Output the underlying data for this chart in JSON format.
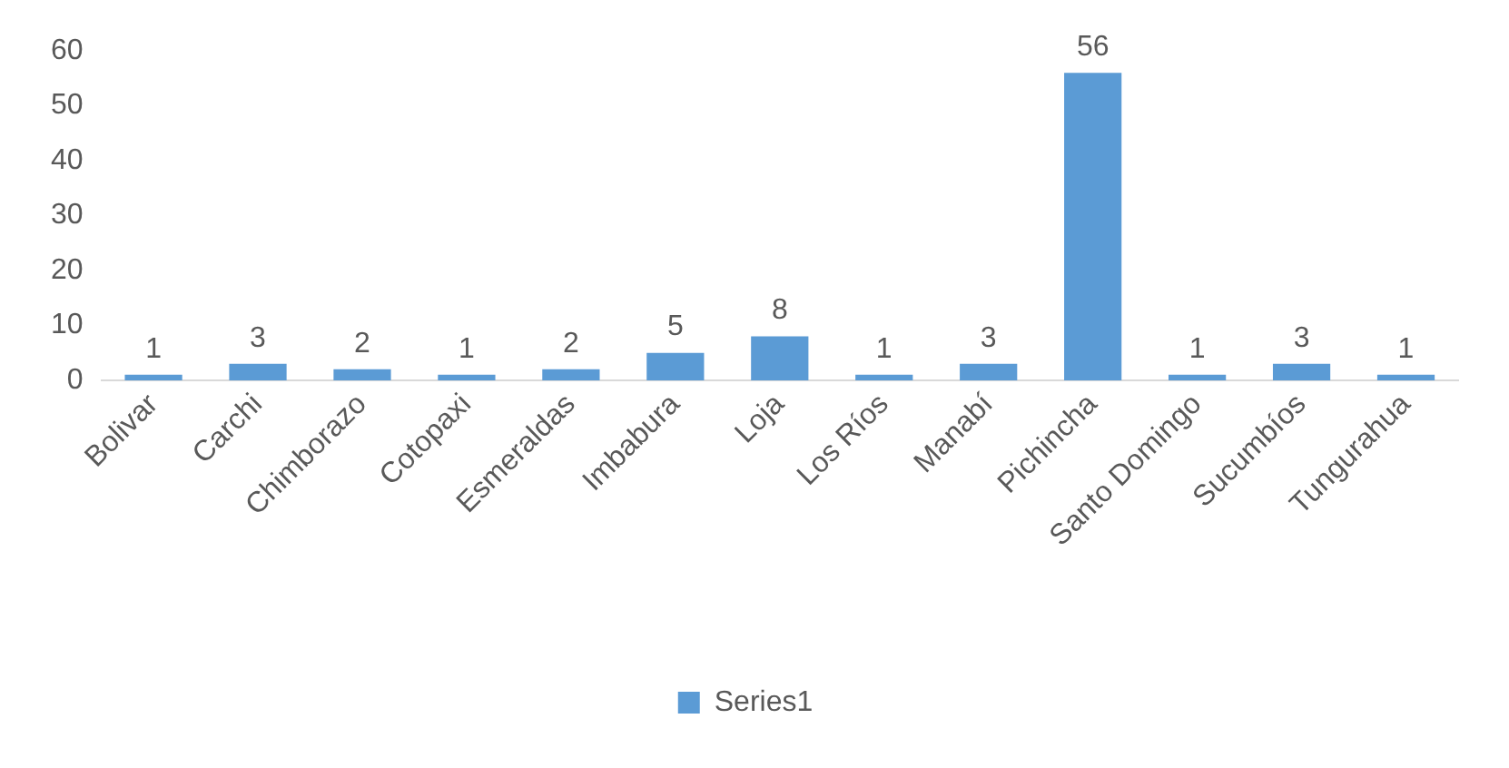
{
  "chart_data": {
    "type": "bar",
    "categories": [
      "Bolivar",
      "Carchi",
      "Chimborazo",
      "Cotopaxi",
      "Esmeraldas",
      "Imbabura",
      "Loja",
      "Los Ríos",
      "Manabí",
      "Pichincha",
      "Santo Domingo",
      "Sucumbíos",
      "Tungurahua"
    ],
    "series": [
      {
        "name": "Series1",
        "color": "#5b9bd5",
        "values": [
          1,
          3,
          2,
          1,
          2,
          5,
          8,
          1,
          3,
          56,
          1,
          3,
          1
        ]
      }
    ],
    "ylim": [
      0,
      60
    ],
    "yticks": [
      0,
      10,
      20,
      30,
      40,
      50,
      60
    ],
    "grid": false,
    "legend": "bottom",
    "data_labels": true
  }
}
